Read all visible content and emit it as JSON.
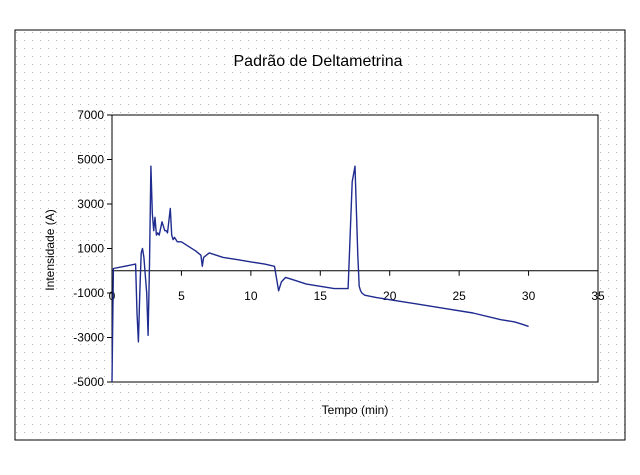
{
  "chart_data": {
    "type": "line",
    "title": "Padrão de Deltametrina",
    "xlabel": "Tempo (min)",
    "ylabel": "Intensidade (A)",
    "xlim": [
      0,
      35
    ],
    "ylim": [
      -5000,
      7000
    ],
    "x_ticks": [
      "0",
      "5",
      "10",
      "15",
      "20",
      "25",
      "30",
      "35"
    ],
    "y_ticks": [
      "7000",
      "5000",
      "3000",
      "1000",
      "-1000",
      "-3000",
      "-5000"
    ],
    "grid": false,
    "legend": "none",
    "line_color": "#1f2b8f",
    "series": [
      {
        "x": [
          0.0,
          0.1,
          1.7,
          1.8,
          1.9,
          2.0,
          2.1,
          2.2,
          2.3,
          2.5,
          2.6,
          2.7,
          2.8,
          2.9,
          3.0,
          3.1,
          3.2,
          3.3,
          3.4,
          3.6,
          3.8,
          3.9,
          4.0,
          4.2,
          4.3,
          4.4,
          4.5,
          4.7,
          5.0,
          5.5,
          6.0,
          6.4,
          6.5,
          6.6,
          7.0,
          8.0,
          9.0,
          10.0,
          11.0,
          11.7,
          12.0,
          12.2,
          12.5,
          13.0,
          14.0,
          15.0,
          16.0,
          17.0,
          17.3,
          17.5,
          17.7,
          17.8,
          17.9,
          18.0,
          18.2,
          19.0,
          20.0,
          22.0,
          24.0,
          26.0,
          28.0,
          29.0,
          29.5,
          30.0
        ],
        "y": [
          -5000,
          100,
          300,
          -1900,
          -3200,
          -1000,
          800,
          1000,
          600,
          -1000,
          -2900,
          300,
          4700,
          2600,
          1800,
          2400,
          1600,
          1700,
          1600,
          2200,
          1800,
          1800,
          1700,
          2800,
          1600,
          1400,
          1500,
          1300,
          1300,
          1100,
          900,
          700,
          200,
          600,
          800,
          600,
          500,
          400,
          300,
          200,
          -900,
          -500,
          -300,
          -400,
          -600,
          -700,
          -800,
          -800,
          4000,
          4700,
          700,
          -700,
          -900,
          -1000,
          -1100,
          -1200,
          -1300,
          -1500,
          -1700,
          -1900,
          -2200,
          -2300,
          -2400,
          -2500
        ]
      }
    ]
  }
}
